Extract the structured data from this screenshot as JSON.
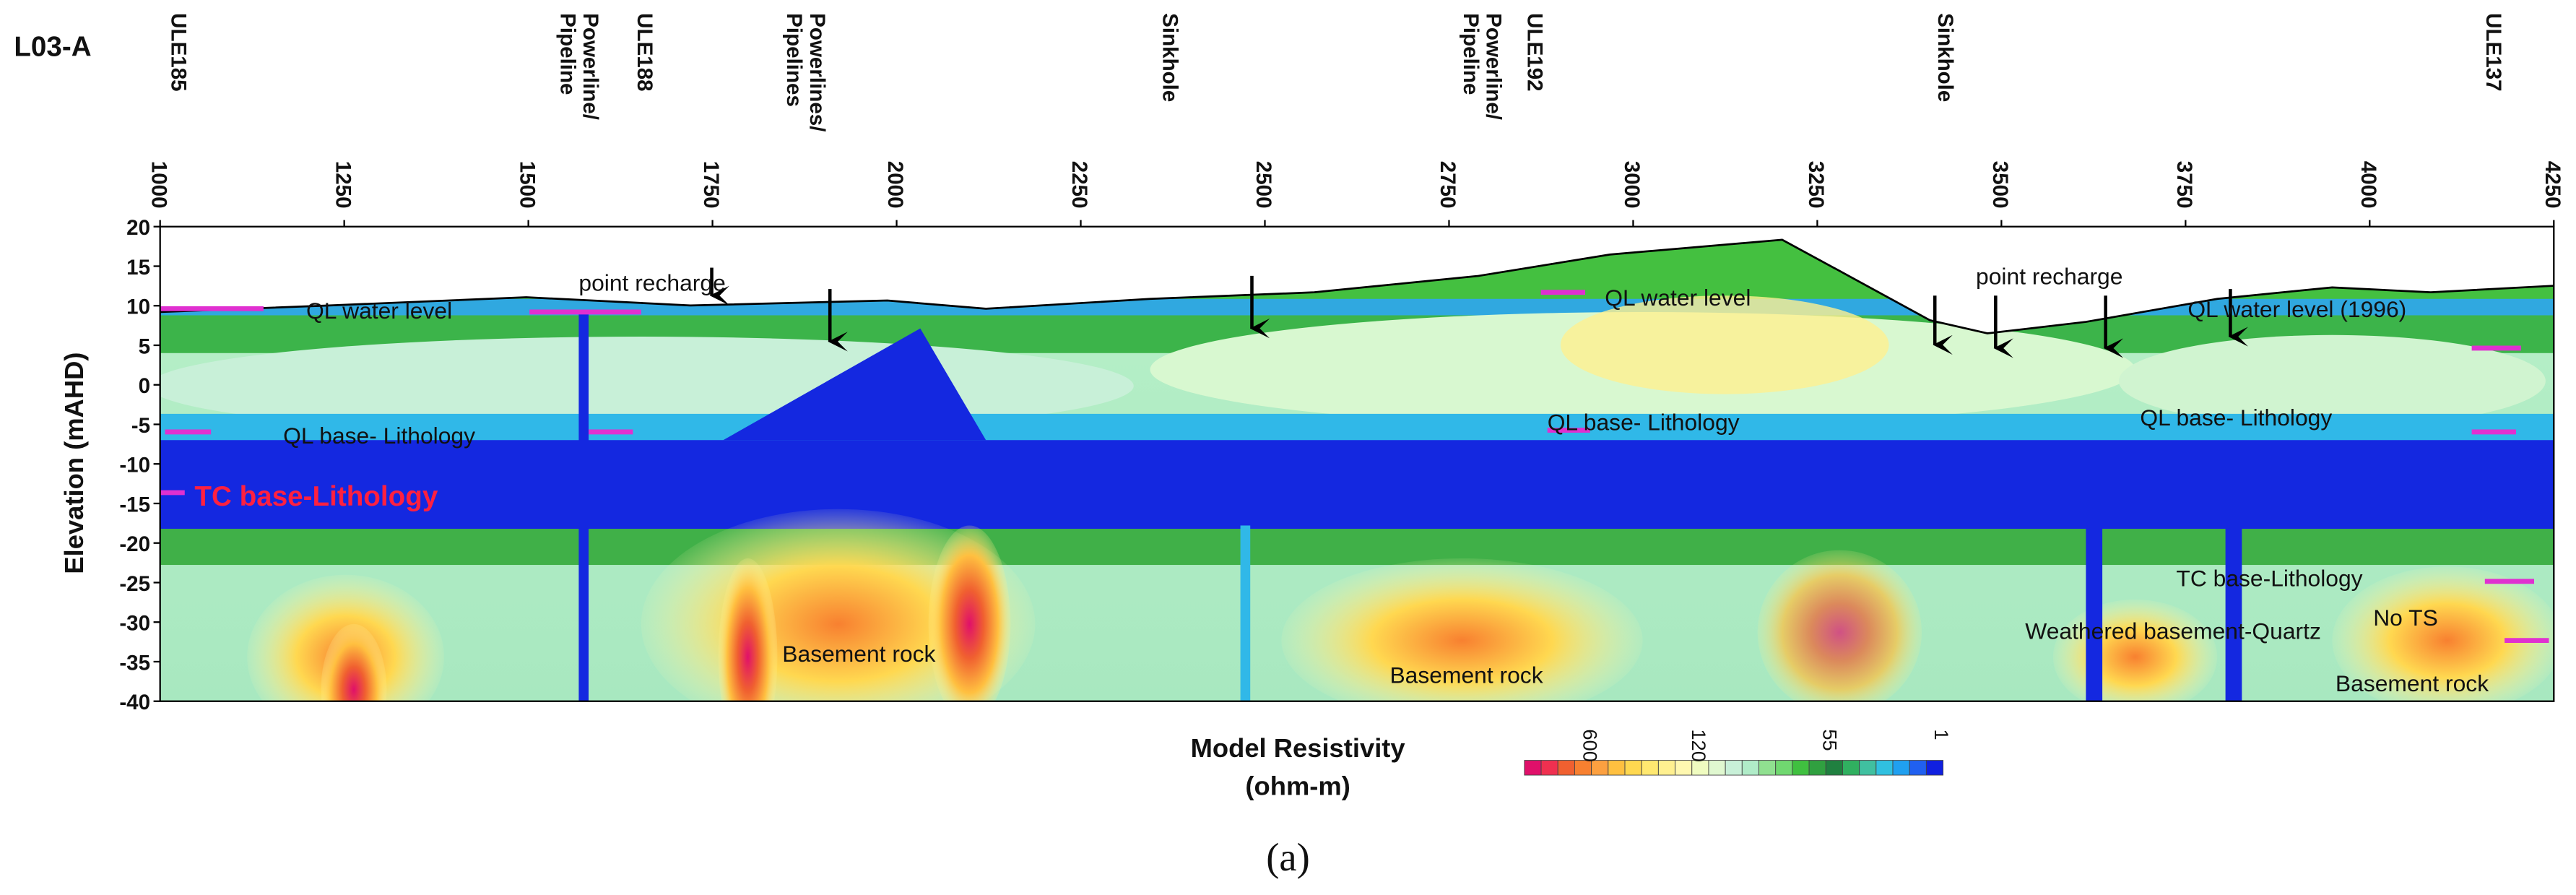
{
  "chart_data": {
    "type": "section",
    "title": "L03-A",
    "ylabel": "Elevation (mAHD)",
    "xlim": [
      1000,
      4250
    ],
    "xticks": [
      1000,
      1250,
      1500,
      1750,
      2000,
      2250,
      2500,
      2750,
      3000,
      3250,
      3500,
      3750,
      4000,
      4250
    ],
    "ylim": [
      -40,
      20
    ],
    "yticks": [
      20,
      15,
      10,
      5,
      0,
      -5,
      -10,
      -15,
      -20,
      -25,
      -30,
      -35,
      -40
    ],
    "features": [
      [
        "ULE185"
      ],
      [
        "Powerline/",
        "Pipeline"
      ],
      [
        "ULE188"
      ],
      [
        "Powerlines/",
        "Pipelines"
      ],
      [
        "Sinkhole"
      ],
      [
        "Powerline/",
        "Pipeline"
      ],
      [
        "ULE192"
      ],
      [
        "Sinkhole"
      ],
      [
        "ULE137"
      ]
    ],
    "annotations": [
      "point recharge",
      "point recharge",
      "QL water level",
      "QL base- Lithology",
      "TC base-Lithology",
      "QL water level",
      "QL base- Lithology",
      "QL water level (1996)",
      "QL base- Lithology",
      "TC base-Lithology",
      "Weathered basement-Quartz",
      "No TS",
      "Basement rock",
      "Basement rock",
      "Basement rock"
    ],
    "colorbar_title": [
      "Model Resistivity",
      "(ohm-m)"
    ],
    "colorbar_ticks": [
      600,
      120,
      55,
      1
    ],
    "colorbar_colors": [
      "#e0106a",
      "#f03050",
      "#f06030",
      "#f88030",
      "#fca040",
      "#ffc040",
      "#ffd850",
      "#ffe870",
      "#fff090",
      "#fff8b0",
      "#f0fcc0",
      "#e0f8d0",
      "#c8f0d8",
      "#b0ecc8",
      "#90e090",
      "#70d870",
      "#40c040",
      "#30a040",
      "#208040",
      "#30b060",
      "#40c0a0",
      "#30c0e0",
      "#20a0f0",
      "#2060f0",
      "#1020e0"
    ],
    "caption": "(a)"
  }
}
